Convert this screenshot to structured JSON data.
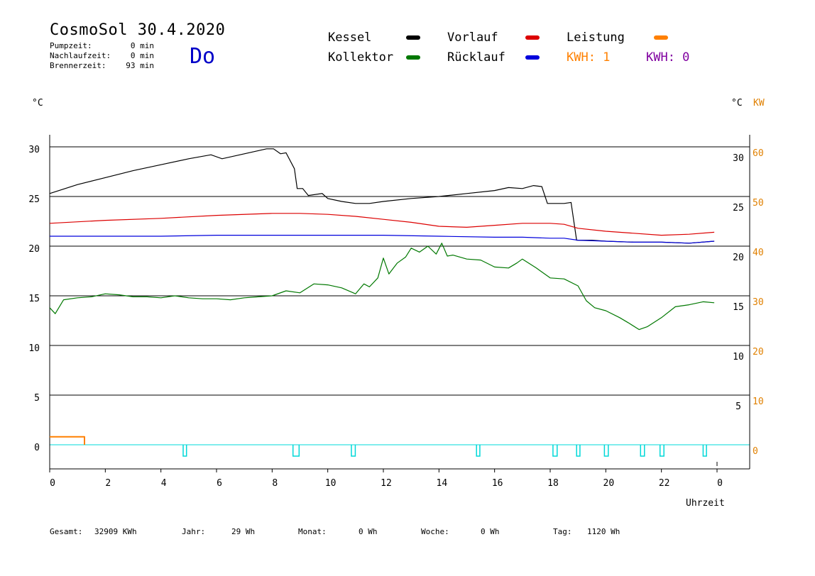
{
  "header": {
    "title": "CosmoSol 30.4.2020",
    "day": "Do",
    "pump_label": "Pumpzeit:",
    "pump_value": "0 min",
    "nachlauf_label": "Nachlaufzeit:",
    "nachlauf_value": "0 min",
    "brenner_label": "Brennerzeit:",
    "brenner_value": "93 min"
  },
  "legend": {
    "kessel": "Kessel",
    "kollektor": "Kollektor",
    "vorlauf": "Vorlauf",
    "ruecklauf": "Rücklauf",
    "leistung": "Leistung",
    "kwh1": "KWH: 1",
    "kwh2": "KWH: 0"
  },
  "axes": {
    "left_unit": "°C",
    "right_unit": "°C",
    "kw_unit": "KW",
    "x_label": "Uhrzeit"
  },
  "footer": {
    "gesamt_label": "Gesamt:",
    "gesamt_value": "32909 KWh",
    "jahr_label": "Jahr:",
    "jahr_value": "29 Wh",
    "monat_label": "Monat:",
    "monat_value": "0 Wh",
    "woche_label": "Woche:",
    "woche_value": "0 Wh",
    "tag_label": "Tag:",
    "tag_value": "1120 Wh"
  },
  "colors": {
    "kessel": "#000000",
    "kollektor": "#007800",
    "vorlauf": "#dc0000",
    "ruecklauf": "#0000dc",
    "leistung": "#ff8000",
    "kwh2": "#8000a0",
    "pump": "#00d8d8",
    "kw_axis": "#e08000"
  },
  "chart_data": {
    "type": "line",
    "xlabel": "Uhrzeit",
    "ylabel": "°C",
    "y2label": "KW",
    "xlim": [
      0,
      24
    ],
    "ylim": [
      0,
      30
    ],
    "y2lim": [
      0,
      60
    ],
    "x_ticks": [
      "0",
      "2",
      "4",
      "6",
      "8",
      "10",
      "12",
      "14",
      "16",
      "18",
      "20",
      "22",
      "0"
    ],
    "y_ticks_left": [
      "30",
      "25",
      "20",
      "15",
      "10",
      "5",
      "0"
    ],
    "y_ticks_right": [
      "30",
      "25",
      "20",
      "15",
      "10",
      "5"
    ],
    "y2_ticks": [
      "60",
      "50",
      "40",
      "30",
      "20",
      "10",
      "0"
    ],
    "grid": true,
    "series": [
      {
        "name": "Kessel",
        "color": "#000000",
        "x": [
          0,
          1,
          2,
          3,
          4,
          5,
          5.8,
          6.2,
          7,
          7.8,
          8.05,
          8.3,
          8.5,
          8.8,
          8.9,
          9.1,
          9.3,
          9.8,
          10,
          10.5,
          11,
          11.5,
          12,
          13,
          14,
          15,
          16,
          16.5,
          17,
          17.4,
          17.7,
          17.9,
          18.5,
          18.75,
          18.95,
          19.5,
          20,
          21,
          22,
          23,
          23.9
        ],
        "y": [
          25.3,
          26.2,
          26.9,
          27.6,
          28.2,
          28.8,
          29.2,
          28.8,
          29.3,
          29.8,
          29.8,
          29.3,
          29.4,
          27.8,
          25.8,
          25.8,
          25.1,
          25.3,
          24.8,
          24.5,
          24.3,
          24.3,
          24.5,
          24.8,
          25.0,
          25.3,
          25.6,
          25.9,
          25.8,
          26.1,
          26.0,
          24.3,
          24.3,
          24.4,
          20.6,
          20.6,
          20.5,
          20.4,
          20.4,
          20.3,
          20.5
        ]
      },
      {
        "name": "Vorlauf",
        "color": "#dc0000",
        "x": [
          0,
          2,
          4,
          6,
          8,
          9,
          10,
          11,
          12,
          13,
          14,
          15,
          16,
          17,
          18,
          18.5,
          19,
          20,
          21,
          22,
          23,
          23.9
        ],
        "y": [
          22.3,
          22.6,
          22.8,
          23.1,
          23.3,
          23.3,
          23.2,
          23.0,
          22.7,
          22.4,
          22.0,
          21.9,
          22.1,
          22.3,
          22.3,
          22.2,
          21.8,
          21.5,
          21.3,
          21.1,
          21.2,
          21.4
        ]
      },
      {
        "name": "Rücklauf",
        "color": "#0000dc",
        "x": [
          0,
          2,
          4,
          6,
          8,
          10,
          12,
          14,
          16,
          17,
          18,
          18.5,
          19,
          20,
          21,
          22,
          23,
          23.9
        ],
        "y": [
          21.0,
          21.0,
          21.0,
          21.1,
          21.1,
          21.1,
          21.1,
          21.0,
          20.9,
          20.9,
          20.8,
          20.8,
          20.6,
          20.5,
          20.4,
          20.4,
          20.3,
          20.5
        ]
      },
      {
        "name": "Kollektor",
        "color": "#007800",
        "x": [
          0,
          0.2,
          0.5,
          1,
          1.5,
          2,
          2.5,
          3,
          3.5,
          4,
          4.5,
          5,
          5.5,
          6,
          6.5,
          7,
          7.5,
          8,
          8.5,
          9,
          9.5,
          10,
          10.5,
          11,
          11.3,
          11.5,
          11.8,
          12,
          12.2,
          12.5,
          12.8,
          13,
          13.3,
          13.6,
          13.9,
          14.1,
          14.3,
          14.5,
          15,
          15.5,
          16,
          16.5,
          16.8,
          17,
          17.5,
          18,
          18.5,
          19,
          19.3,
          19.6,
          20,
          20.5,
          20.8,
          21.2,
          21.5,
          22,
          22.5,
          23,
          23.5,
          23.9
        ],
        "y": [
          13.8,
          13.2,
          14.6,
          14.8,
          14.9,
          15.2,
          15.1,
          14.9,
          14.9,
          14.8,
          15.0,
          14.8,
          14.7,
          14.7,
          14.6,
          14.8,
          14.9,
          15.0,
          15.5,
          15.3,
          16.2,
          16.1,
          15.8,
          15.2,
          16.2,
          15.9,
          16.8,
          18.8,
          17.2,
          18.3,
          18.9,
          19.8,
          19.4,
          20.0,
          19.2,
          20.3,
          19.0,
          19.1,
          18.7,
          18.6,
          17.9,
          17.8,
          18.3,
          18.7,
          17.8,
          16.8,
          16.7,
          16.0,
          14.5,
          13.8,
          13.5,
          12.8,
          12.3,
          11.6,
          11.9,
          12.8,
          13.9,
          14.1,
          14.4,
          14.3
        ]
      },
      {
        "name": "Leistung",
        "color": "#ff8000",
        "axis": "KW",
        "x": [
          0,
          1.25,
          1.25
        ],
        "y": [
          0.8,
          0.8,
          0
        ]
      }
    ],
    "pump_pulses_hours": [
      4.8,
      8.75,
      10.85,
      15.35,
      18.1,
      18.95,
      19.95,
      21.25,
      21.95,
      23.5
    ],
    "pump_pulse_widths": [
      0.12,
      0.22,
      0.14,
      0.12,
      0.15,
      0.12,
      0.14,
      0.14,
      0.14,
      0.12
    ]
  }
}
